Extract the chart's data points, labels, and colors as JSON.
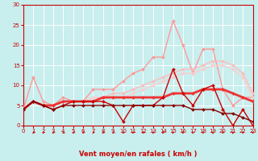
{
  "background_color": "#c8eeee",
  "grid_color": "#aadddd",
  "xlabel": "Vent moyen/en rafales ( km/h )",
  "xlim": [
    0,
    23
  ],
  "ylim": [
    0,
    30
  ],
  "yticks": [
    0,
    5,
    10,
    15,
    20,
    25,
    30
  ],
  "xticks": [
    0,
    1,
    2,
    3,
    4,
    5,
    6,
    7,
    8,
    9,
    10,
    11,
    12,
    13,
    14,
    15,
    16,
    17,
    18,
    19,
    20,
    21,
    22,
    23
  ],
  "lines": [
    {
      "x": [
        0,
        1,
        2,
        3,
        4,
        5,
        6,
        7,
        8,
        9,
        10,
        11,
        12,
        13,
        14,
        15,
        16,
        17,
        18,
        19,
        20,
        21,
        22,
        23
      ],
      "y": [
        4,
        12,
        6,
        5,
        7,
        6,
        6,
        9,
        9,
        9,
        11,
        13,
        14,
        17,
        17,
        26,
        20,
        13,
        19,
        19,
        9,
        5,
        7,
        7
      ],
      "color": "#ff9999",
      "lw": 1.0,
      "marker": "D",
      "ms": 2.0,
      "zorder": 3
    },
    {
      "x": [
        0,
        1,
        2,
        3,
        4,
        5,
        6,
        7,
        8,
        9,
        10,
        11,
        12,
        13,
        14,
        15,
        16,
        17,
        18,
        19,
        20,
        21,
        22,
        23
      ],
      "y": [
        4,
        6,
        5,
        5,
        6,
        6,
        6,
        7,
        7,
        8,
        8,
        9,
        10,
        11,
        12,
        13,
        14,
        14,
        15,
        16,
        16,
        15,
        13,
        8
      ],
      "color": "#ffbbbb",
      "lw": 1.0,
      "marker": "D",
      "ms": 2.0,
      "zorder": 3
    },
    {
      "x": [
        0,
        1,
        2,
        3,
        4,
        5,
        6,
        7,
        8,
        9,
        10,
        11,
        12,
        13,
        14,
        15,
        16,
        17,
        18,
        19,
        20,
        21,
        22,
        23
      ],
      "y": [
        4,
        6,
        5,
        5,
        6,
        6,
        6,
        7,
        7,
        7,
        7,
        8,
        9,
        10,
        11,
        12,
        13,
        13,
        14,
        15,
        15,
        14,
        12,
        7
      ],
      "color": "#ffcccc",
      "lw": 1.0,
      "marker": "D",
      "ms": 2.0,
      "zorder": 3
    },
    {
      "x": [
        0,
        1,
        2,
        3,
        4,
        5,
        6,
        7,
        8,
        9,
        10,
        11,
        12,
        13,
        14,
        15,
        16,
        17,
        18,
        19,
        20,
        21,
        22,
        23
      ],
      "y": [
        4,
        6,
        5,
        5,
        6,
        6,
        6,
        6,
        7,
        7,
        7,
        7,
        7,
        7,
        7,
        8,
        8,
        8,
        9,
        9,
        9,
        8,
        7,
        6
      ],
      "color": "#ee3333",
      "lw": 2.0,
      "marker": "D",
      "ms": 2.0,
      "zorder": 4
    },
    {
      "x": [
        0,
        1,
        2,
        3,
        4,
        5,
        6,
        7,
        8,
        9,
        10,
        11,
        12,
        13,
        14,
        15,
        16,
        17,
        18,
        19,
        20,
        21,
        22,
        23
      ],
      "y": [
        4,
        6,
        5,
        4,
        5,
        6,
        6,
        6,
        6,
        5,
        1,
        5,
        5,
        5,
        7,
        14,
        8,
        5,
        9,
        10,
        4,
        0,
        4,
        0
      ],
      "color": "#cc0000",
      "lw": 1.0,
      "marker": "D",
      "ms": 2.0,
      "zorder": 5
    },
    {
      "x": [
        0,
        1,
        2,
        3,
        4,
        5,
        6,
        7,
        8,
        9,
        10,
        11,
        12,
        13,
        14,
        15,
        16,
        17,
        18,
        19,
        20,
        21,
        22,
        23
      ],
      "y": [
        4,
        6,
        5,
        4,
        5,
        5,
        5,
        5,
        5,
        5,
        5,
        5,
        5,
        5,
        5,
        5,
        5,
        4,
        4,
        4,
        3,
        3,
        2,
        1
      ],
      "color": "#880000",
      "lw": 1.0,
      "marker": "D",
      "ms": 2.0,
      "zorder": 5
    }
  ],
  "arrow_color": "#cc0000",
  "tick_color": "#cc0000",
  "xlabel_color": "#cc0000",
  "xlabel_fontsize": 6,
  "tick_fontsize": 5,
  "spine_color": "#cc0000"
}
